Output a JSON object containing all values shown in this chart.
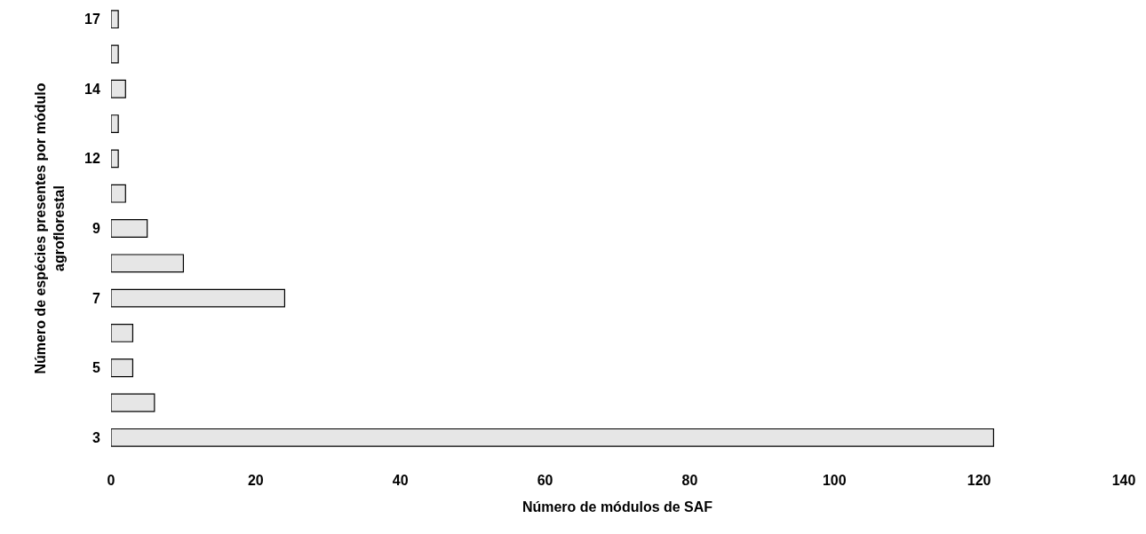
{
  "chart_data": {
    "type": "bar",
    "orientation": "horizontal",
    "xlabel": "Número de módulos de SAF",
    "ylabel": "Número de espécies presentes por módulo\nagroflorestal",
    "categories": [
      "17",
      null,
      "14",
      null,
      "12",
      null,
      "9",
      null,
      "7",
      null,
      "5",
      null,
      "3"
    ],
    "values": [
      1,
      1,
      2,
      1,
      1,
      2,
      5,
      10,
      24,
      3,
      3,
      6,
      122
    ],
    "color": "#e6e6e6",
    "xlim": [
      0,
      140
    ],
    "xticks": [
      0,
      20,
      40,
      60,
      80,
      100,
      120,
      140
    ]
  }
}
